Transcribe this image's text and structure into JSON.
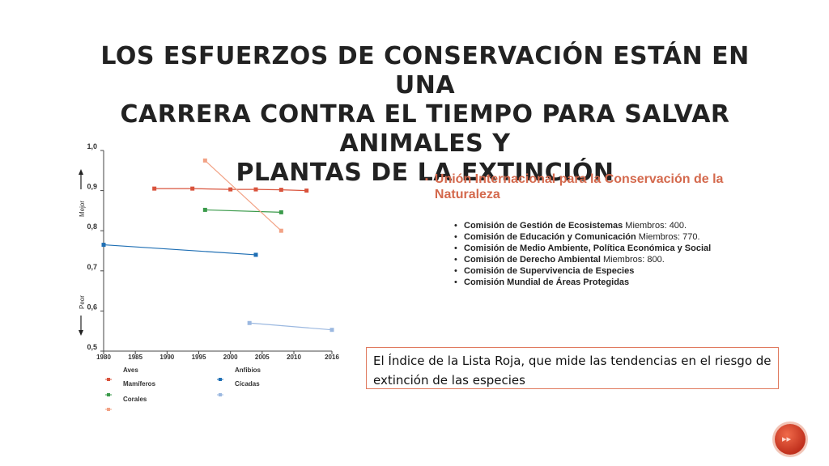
{
  "slide": {
    "title_lines": [
      "LOS ESFUERZOS DE CONSERVACIÓN ESTÁN EN UNA",
      "CARRERA CONTRA EL TIEMPO PARA SALVAR ANIMALES Y",
      "PLANTAS DE LA EXTINCIÓN"
    ],
    "main_bullet": "Unión Internacional para la Conservación de la Naturaleza",
    "sub_items": [
      {
        "bold": "Comisión de Gestión de Ecosistemas",
        "rest": " Miembros: 400."
      },
      {
        "bold": "Comisión de Educación y Comunicación",
        "rest": " Miembros: 770."
      },
      {
        "bold": "Comisión de Medio Ambiente, Política Económica y Social",
        "rest": ""
      },
      {
        "bold": "Comisión de Derecho Ambiental",
        "rest": " Miembros: 800."
      },
      {
        "bold": "Comisión de Supervivencia de Especies",
        "rest": ""
      },
      {
        "bold": "Comisión Mundial de Áreas Protegidas",
        "rest": ""
      }
    ],
    "callout_text": "El Índice de la Lista Roja, que mide las tendencias en el riesgo de extinción de las especies",
    "nav_icon": "slide-nav-icon"
  },
  "chart_data": {
    "type": "line",
    "x_range": [
      1980,
      2016
    ],
    "ylim": [
      0.5,
      1.0
    ],
    "x_ticks": [
      "1980",
      "1985",
      "1990",
      "1995",
      "2000",
      "2005",
      "2010",
      "2016"
    ],
    "y_ticks": [
      "0,5",
      "0,6",
      "0,7",
      "0,8",
      "0,9",
      "1,0"
    ],
    "y_annot_top": "Mejor",
    "y_annot_bottom": "Peor",
    "legend_labels": [
      "Aves",
      "Mamíferos",
      "Corales",
      "Anfibios",
      "Cícadas"
    ],
    "series": [
      {
        "color": "#d9533c",
        "marker": "square",
        "x": [
          1988,
          1994,
          2000,
          2004,
          2008,
          2012
        ],
        "y": [
          0.905,
          0.905,
          0.903,
          0.903,
          0.902,
          0.9
        ]
      },
      {
        "color": "#3a9a4a",
        "marker": "square",
        "x": [
          1996,
          2008
        ],
        "y": [
          0.852,
          0.846
        ]
      },
      {
        "color": "#f2a285",
        "marker": "square",
        "x": [
          1996,
          2008
        ],
        "y": [
          0.975,
          0.8
        ]
      },
      {
        "color": "#1f6fb4",
        "marker": "square",
        "x": [
          1980,
          2004
        ],
        "y": [
          0.765,
          0.74
        ]
      },
      {
        "color": "#9bb8e0",
        "marker": "square",
        "x": [
          2003,
          2016
        ],
        "y": [
          0.57,
          0.553
        ]
      }
    ],
    "legend_markers": [
      {
        "color": "#d9533c"
      },
      {
        "color": "#3a9a4a"
      },
      {
        "color": "#f2a285"
      },
      {
        "color": "#1f6fb4"
      },
      {
        "color": "#9bb8e0"
      }
    ]
  }
}
